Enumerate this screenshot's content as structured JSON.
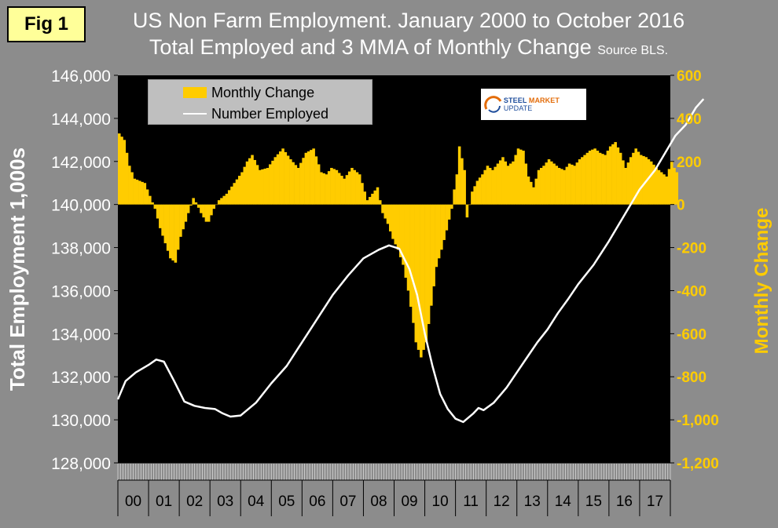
{
  "figure_label": "Fig 1",
  "title_line1": "US Non Farm Employment. January 2000 to October 2016",
  "title_line2": "Total Employed and 3 MMA of Monthly Change",
  "title_source": "Source BLS.",
  "legend": {
    "bars": "Monthly Change",
    "line": "Number Employed"
  },
  "logo": {
    "text_part1": "STEEL",
    "text_part2": "MARKET",
    "text_part3": "UPDATE"
  },
  "colors": {
    "background": "#8c8c8c",
    "plot": "#000000",
    "bars": "#ffcc00",
    "line": "#ffffff"
  },
  "chart_data": {
    "type": "bar+line",
    "title": "US Non Farm Employment. January 2000 to October 2016",
    "subtitle": "Total Employed and 3 MMA of Monthly Change Source BLS.",
    "ylabel": "Total Employment 1,000s",
    "y2label": "Monthly Change",
    "ylim": [
      128000,
      146000
    ],
    "y2lim": [
      -1200,
      600
    ],
    "y_ticks": [
      "128,000",
      "130,000",
      "132,000",
      "134,000",
      "136,000",
      "138,000",
      "140,000",
      "142,000",
      "144,000",
      "146,000"
    ],
    "y2_ticks": [
      "-1,200",
      "-1,000",
      "-800",
      "-600",
      "-400",
      "-200",
      "0",
      "200",
      "400",
      "600"
    ],
    "x_tick_labels": [
      "00",
      "01",
      "02",
      "03",
      "04",
      "05",
      "06",
      "07",
      "08",
      "09",
      "10",
      "11",
      "12",
      "13",
      "14",
      "15",
      "16",
      "17"
    ],
    "x_start": "2000-01",
    "x_months_total": 216,
    "line_series": {
      "name": "Number Employed",
      "anchors": [
        [
          0,
          130950
        ],
        [
          3,
          131800
        ],
        [
          7,
          132200
        ],
        [
          12,
          132550
        ],
        [
          15,
          132800
        ],
        [
          18,
          132700
        ],
        [
          22,
          131800
        ],
        [
          26,
          130850
        ],
        [
          30,
          130650
        ],
        [
          34,
          130550
        ],
        [
          38,
          130500
        ],
        [
          41,
          130300
        ],
        [
          44,
          130150
        ],
        [
          48,
          130200
        ],
        [
          54,
          130800
        ],
        [
          60,
          131700
        ],
        [
          66,
          132500
        ],
        [
          72,
          133600
        ],
        [
          78,
          134700
        ],
        [
          84,
          135800
        ],
        [
          90,
          136700
        ],
        [
          96,
          137500
        ],
        [
          102,
          137900
        ],
        [
          106,
          138100
        ],
        [
          110,
          137950
        ],
        [
          114,
          137000
        ],
        [
          117,
          135800
        ],
        [
          120,
          134000
        ],
        [
          123,
          132500
        ],
        [
          126,
          131200
        ],
        [
          129,
          130500
        ],
        [
          132,
          130050
        ],
        [
          135,
          129900
        ],
        [
          139,
          130300
        ],
        [
          141,
          130550
        ],
        [
          143,
          130450
        ],
        [
          147,
          130800
        ],
        [
          152,
          131500
        ],
        [
          156,
          132200
        ],
        [
          160,
          132900
        ],
        [
          164,
          133600
        ],
        [
          168,
          134200
        ],
        [
          172,
          134950
        ],
        [
          176,
          135600
        ],
        [
          180,
          136300
        ],
        [
          186,
          137200
        ],
        [
          192,
          138300
        ],
        [
          198,
          139500
        ],
        [
          204,
          140700
        ],
        [
          210,
          141600
        ],
        [
          214,
          142400
        ],
        [
          218,
          143200
        ],
        [
          222,
          143700
        ],
        [
          226,
          144500
        ],
        [
          229,
          144900
        ]
      ]
    },
    "bar_series": {
      "name": "Monthly Change",
      "anchors": [
        [
          0,
          330
        ],
        [
          2,
          300
        ],
        [
          4,
          180
        ],
        [
          6,
          120
        ],
        [
          8,
          110
        ],
        [
          10,
          100
        ],
        [
          12,
          40
        ],
        [
          14,
          -20
        ],
        [
          16,
          -110
        ],
        [
          18,
          -180
        ],
        [
          20,
          -250
        ],
        [
          22,
          -270
        ],
        [
          24,
          -150
        ],
        [
          26,
          -80
        ],
        [
          27,
          -40
        ],
        [
          29,
          30
        ],
        [
          30,
          10
        ],
        [
          32,
          -40
        ],
        [
          34,
          -80
        ],
        [
          35,
          -80
        ],
        [
          37,
          -20
        ],
        [
          39,
          20
        ],
        [
          42,
          50
        ],
        [
          45,
          100
        ],
        [
          48,
          150
        ],
        [
          50,
          200
        ],
        [
          52,
          230
        ],
        [
          55,
          160
        ],
        [
          58,
          170
        ],
        [
          61,
          220
        ],
        [
          64,
          260
        ],
        [
          67,
          210
        ],
        [
          70,
          170
        ],
        [
          73,
          240
        ],
        [
          76,
          260
        ],
        [
          79,
          150
        ],
        [
          81,
          140
        ],
        [
          83,
          170
        ],
        [
          85,
          160
        ],
        [
          88,
          120
        ],
        [
          91,
          170
        ],
        [
          94,
          140
        ],
        [
          97,
          20
        ],
        [
          99,
          50
        ],
        [
          101,
          80
        ],
        [
          103,
          -40
        ],
        [
          105,
          -90
        ],
        [
          107,
          -160
        ],
        [
          109,
          -210
        ],
        [
          111,
          -280
        ],
        [
          113,
          -400
        ],
        [
          115,
          -550
        ],
        [
          116,
          -640
        ],
        [
          118,
          -710
        ],
        [
          120,
          -640
        ],
        [
          122,
          -470
        ],
        [
          124,
          -290
        ],
        [
          126,
          -210
        ],
        [
          128,
          -120
        ],
        [
          130,
          -20
        ],
        [
          131,
          70
        ],
        [
          132,
          140
        ],
        [
          133,
          270
        ],
        [
          135,
          160
        ],
        [
          136,
          -60
        ],
        [
          138,
          60
        ],
        [
          140,
          110
        ],
        [
          142,
          140
        ],
        [
          144,
          180
        ],
        [
          146,
          160
        ],
        [
          148,
          190
        ],
        [
          150,
          220
        ],
        [
          152,
          180
        ],
        [
          154,
          200
        ],
        [
          156,
          260
        ],
        [
          158,
          250
        ],
        [
          160,
          130
        ],
        [
          162,
          80
        ],
        [
          164,
          160
        ],
        [
          166,
          180
        ],
        [
          168,
          210
        ],
        [
          170,
          190
        ],
        [
          172,
          170
        ],
        [
          174,
          160
        ],
        [
          176,
          190
        ],
        [
          178,
          180
        ],
        [
          180,
          210
        ],
        [
          182,
          230
        ],
        [
          184,
          250
        ],
        [
          186,
          260
        ],
        [
          188,
          240
        ],
        [
          190,
          230
        ],
        [
          192,
          270
        ],
        [
          194,
          290
        ],
        [
          196,
          240
        ],
        [
          198,
          170
        ],
        [
          200,
          220
        ],
        [
          202,
          260
        ],
        [
          204,
          230
        ],
        [
          206,
          220
        ],
        [
          208,
          200
        ],
        [
          210,
          170
        ],
        [
          212,
          150
        ],
        [
          214,
          130
        ],
        [
          216,
          200
        ],
        [
          217,
          170
        ],
        [
          218,
          150
        ]
      ],
      "bar_months": 219
    }
  }
}
